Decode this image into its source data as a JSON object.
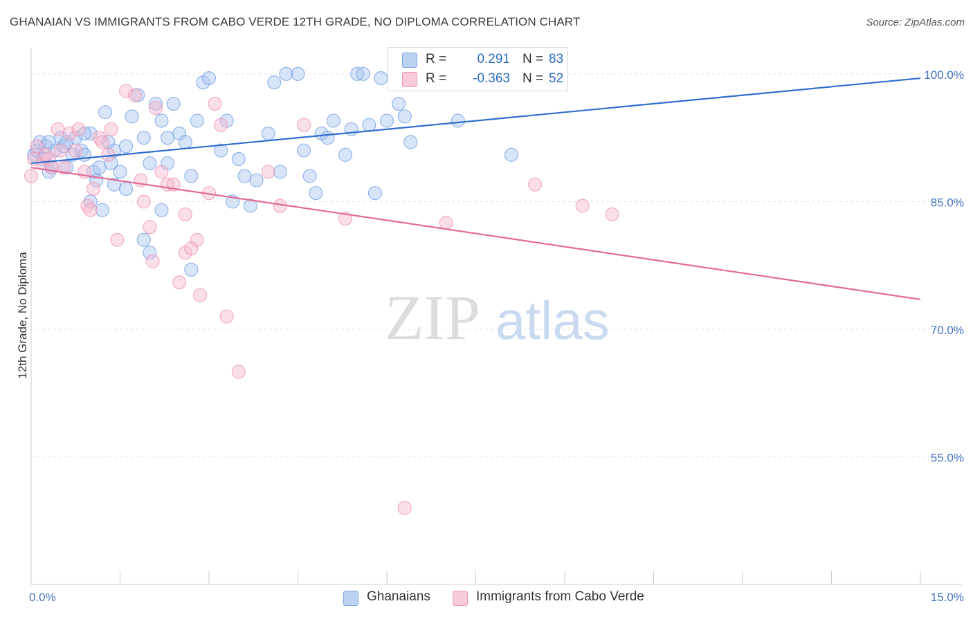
{
  "title": "GHANAIAN VS IMMIGRANTS FROM CABO VERDE 12TH GRADE, NO DIPLOMA CORRELATION CHART",
  "source": "Source: ZipAtlas.com",
  "watermark": {
    "zip": "ZIP",
    "atlas": "atlas"
  },
  "legend": {
    "rows": [
      {
        "r_label": "R =",
        "r_value": "0.291",
        "n_label": "N =",
        "n_value": "83",
        "color": "#a9c4ef"
      },
      {
        "r_label": "R =",
        "r_value": "-0.363",
        "n_label": "N =",
        "n_value": "52",
        "color": "#f5b6cb"
      }
    ]
  },
  "bottom_legend": [
    {
      "label": "Ghanaians",
      "color": "#a9c4ef"
    },
    {
      "label": "Immigrants from Cabo Verde",
      "color": "#f5b6cb"
    }
  ],
  "chart_data": {
    "type": "scatter",
    "xlabel": "",
    "ylabel": "12th Grade, No Diploma",
    "xlim": [
      0,
      15
    ],
    "ylim": [
      40,
      103
    ],
    "x_tick_labels": [
      {
        "value": 0,
        "label": "0.0%"
      },
      {
        "value": 15,
        "label": "15.0%"
      }
    ],
    "y_tick_labels": [
      {
        "value": 100,
        "label": "100.0%"
      },
      {
        "value": 85,
        "label": "85.0%"
      },
      {
        "value": 70,
        "label": "70.0%"
      },
      {
        "value": 55,
        "label": "55.0%"
      }
    ],
    "grid": true,
    "legend_position": "top-center",
    "series": [
      {
        "name": "Ghanaians",
        "color": "#6b9be0",
        "fill": "#a9c4ef",
        "trend": {
          "x": [
            0,
            15
          ],
          "y": [
            89.5,
            99.5
          ]
        },
        "points": [
          [
            0.05,
            90.5
          ],
          [
            0.1,
            91.0
          ],
          [
            0.15,
            92.0
          ],
          [
            0.2,
            90.0
          ],
          [
            0.25,
            91.5
          ],
          [
            0.3,
            88.5
          ],
          [
            0.35,
            89.0
          ],
          [
            0.4,
            91.0
          ],
          [
            0.5,
            92.5
          ],
          [
            0.55,
            91.5
          ],
          [
            0.6,
            92.0
          ],
          [
            0.7,
            90.5
          ],
          [
            0.75,
            92.5
          ],
          [
            0.85,
            91.0
          ],
          [
            0.9,
            90.5
          ],
          [
            1.0,
            93.0
          ],
          [
            1.05,
            88.5
          ],
          [
            1.1,
            87.5
          ],
          [
            1.15,
            89.0
          ],
          [
            1.25,
            95.5
          ],
          [
            1.3,
            92.0
          ],
          [
            1.35,
            89.5
          ],
          [
            1.4,
            91.0
          ],
          [
            1.5,
            88.5
          ],
          [
            1.6,
            86.5
          ],
          [
            1.7,
            95.0
          ],
          [
            1.8,
            97.5
          ],
          [
            1.9,
            92.5
          ],
          [
            2.0,
            89.5
          ],
          [
            2.1,
            96.5
          ],
          [
            2.2,
            94.5
          ],
          [
            2.3,
            89.5
          ],
          [
            2.4,
            96.5
          ],
          [
            2.5,
            93.0
          ],
          [
            2.6,
            92.0
          ],
          [
            2.7,
            88.0
          ],
          [
            2.8,
            94.5
          ],
          [
            2.9,
            99.0
          ],
          [
            3.0,
            99.5
          ],
          [
            3.2,
            91.0
          ],
          [
            3.3,
            94.5
          ],
          [
            3.4,
            85.0
          ],
          [
            3.5,
            90.0
          ],
          [
            3.6,
            88.0
          ],
          [
            3.7,
            84.5
          ],
          [
            3.8,
            87.5
          ],
          [
            4.0,
            93.0
          ],
          [
            4.1,
            99.0
          ],
          [
            4.2,
            88.5
          ],
          [
            4.3,
            100.0
          ],
          [
            4.5,
            100.0
          ],
          [
            4.6,
            91.0
          ],
          [
            4.8,
            86.0
          ],
          [
            4.9,
            93.0
          ],
          [
            5.0,
            92.5
          ],
          [
            5.1,
            94.5
          ],
          [
            5.3,
            90.5
          ],
          [
            5.4,
            93.5
          ],
          [
            5.5,
            100.0
          ],
          [
            5.6,
            100.0
          ],
          [
            5.7,
            94.0
          ],
          [
            5.8,
            86.0
          ],
          [
            5.9,
            99.5
          ],
          [
            6.0,
            94.5
          ],
          [
            6.2,
            96.5
          ],
          [
            6.3,
            95.0
          ],
          [
            6.4,
            92.0
          ],
          [
            7.1,
            100.0
          ],
          [
            7.2,
            94.5
          ],
          [
            8.1,
            90.5
          ],
          [
            1.2,
            84.0
          ],
          [
            1.0,
            85.0
          ],
          [
            1.9,
            80.5
          ],
          [
            2.0,
            79.0
          ],
          [
            2.7,
            77.0
          ],
          [
            2.2,
            84.0
          ],
          [
            0.9,
            93.0
          ],
          [
            0.6,
            89.0
          ],
          [
            1.6,
            91.5
          ],
          [
            0.3,
            92.0
          ],
          [
            1.4,
            87.0
          ],
          [
            2.3,
            92.5
          ],
          [
            4.7,
            88.0
          ]
        ]
      },
      {
        "name": "Immigrants from Cabo Verde",
        "color": "#ee8fb0",
        "fill": "#f5b6cb",
        "trend": {
          "x": [
            0,
            15
          ],
          "y": [
            89.0,
            73.5
          ]
        },
        "points": [
          [
            0.0,
            88.0
          ],
          [
            0.05,
            90.0
          ],
          [
            0.1,
            91.5
          ],
          [
            0.2,
            89.5
          ],
          [
            0.3,
            90.0
          ],
          [
            0.35,
            89.0
          ],
          [
            0.45,
            93.5
          ],
          [
            0.55,
            89.0
          ],
          [
            0.65,
            93.0
          ],
          [
            0.75,
            91.0
          ],
          [
            0.8,
            93.5
          ],
          [
            0.9,
            88.5
          ],
          [
            0.95,
            84.5
          ],
          [
            1.05,
            86.5
          ],
          [
            1.15,
            92.5
          ],
          [
            1.2,
            92.0
          ],
          [
            1.3,
            90.5
          ],
          [
            1.35,
            93.5
          ],
          [
            1.45,
            80.5
          ],
          [
            1.6,
            98.0
          ],
          [
            1.75,
            97.5
          ],
          [
            1.85,
            87.5
          ],
          [
            1.9,
            85.0
          ],
          [
            2.0,
            82.0
          ],
          [
            2.05,
            78.0
          ],
          [
            2.1,
            96.0
          ],
          [
            2.2,
            88.5
          ],
          [
            2.3,
            87.0
          ],
          [
            2.4,
            87.0
          ],
          [
            2.5,
            75.5
          ],
          [
            2.6,
            79.0
          ],
          [
            2.7,
            79.5
          ],
          [
            2.8,
            80.5
          ],
          [
            2.85,
            74.0
          ],
          [
            3.0,
            86.0
          ],
          [
            3.1,
            96.5
          ],
          [
            3.2,
            94.0
          ],
          [
            3.3,
            71.5
          ],
          [
            3.5,
            65.0
          ],
          [
            4.0,
            88.5
          ],
          [
            4.2,
            84.5
          ],
          [
            4.6,
            94.0
          ],
          [
            5.3,
            83.0
          ],
          [
            6.3,
            49.0
          ],
          [
            7.0,
            82.5
          ],
          [
            8.5,
            87.0
          ],
          [
            9.3,
            84.5
          ],
          [
            9.8,
            83.5
          ],
          [
            0.5,
            91.0
          ],
          [
            1.0,
            84.0
          ],
          [
            2.6,
            83.5
          ],
          [
            0.25,
            90.5
          ]
        ]
      }
    ]
  }
}
